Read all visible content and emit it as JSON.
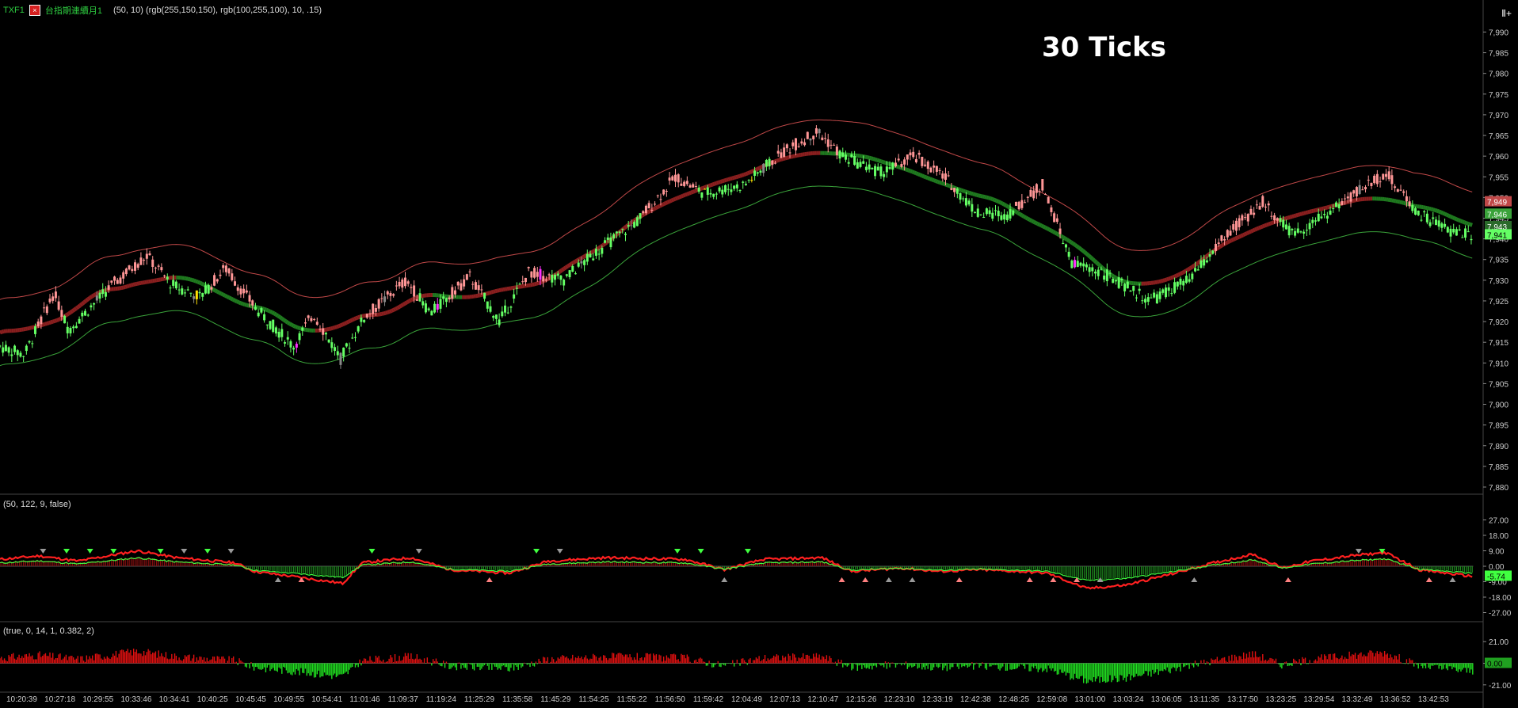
{
  "header": {
    "symbol": "TXF1",
    "close_glyph": "×",
    "indicator": "台指期連續月1",
    "params": "(50,  10)  (rgb(255,150,150),  rgb(100,255,100),  10,  .15)"
  },
  "corner_label": "Ⅱ+",
  "title": "30 Ticks",
  "panel2_header": "(50,  122,  9,  false)",
  "panel3_header": "(true,  0,  14,  1,  0.382,  2)",
  "colors": {
    "background": "#000000",
    "up": "#ff9696",
    "down": "#64ff64",
    "yellow": "#ffe000",
    "magenta": "#ff30ff",
    "band_upper": "#c04848",
    "band_lower": "#3aa33a",
    "mid_red": "#8a1f1f",
    "mid_green": "#1f7a1f",
    "grid_sep": "#444444",
    "axis_text": "#cccccc"
  },
  "chart_data": [
    {
      "type": "candlestick",
      "name": "price",
      "ylim": [
        7880,
        7992
      ],
      "yticks": [
        "7,990",
        "7,985",
        "7,980",
        "7,975",
        "7,970",
        "7,965",
        "7,960",
        "7,955",
        "7,950",
        "7,945",
        "7,940",
        "7,935",
        "7,930",
        "7,925",
        "7,920",
        "7,915",
        "7,910",
        "7,905",
        "7,900",
        "7,895",
        "7,890",
        "7,885",
        "7,880"
      ],
      "path_anchors": [
        [
          0,
          7914
        ],
        [
          25,
          7912
        ],
        [
          55,
          7927
        ],
        [
          70,
          7918
        ],
        [
          115,
          7929
        ],
        [
          150,
          7936
        ],
        [
          175,
          7929
        ],
        [
          205,
          7926
        ],
        [
          230,
          7933
        ],
        [
          262,
          7923
        ],
        [
          300,
          7914
        ],
        [
          320,
          7922
        ],
        [
          348,
          7911
        ],
        [
          372,
          7921
        ],
        [
          415,
          7930
        ],
        [
          440,
          7922
        ],
        [
          480,
          7931
        ],
        [
          510,
          7920
        ],
        [
          540,
          7932
        ],
        [
          575,
          7930
        ],
        [
          610,
          7937
        ],
        [
          650,
          7944
        ],
        [
          690,
          7955
        ],
        [
          720,
          7951
        ],
        [
          760,
          7953
        ],
        [
          800,
          7961
        ],
        [
          835,
          7966
        ],
        [
          860,
          7960
        ],
        [
          900,
          7956
        ],
        [
          935,
          7960
        ],
        [
          965,
          7955
        ],
        [
          1000,
          7946
        ],
        [
          1030,
          7946
        ],
        [
          1065,
          7953
        ],
        [
          1095,
          7934
        ],
        [
          1125,
          7932
        ],
        [
          1175,
          7925
        ],
        [
          1215,
          7930
        ],
        [
          1250,
          7940
        ],
        [
          1290,
          7949
        ],
        [
          1320,
          7941
        ],
        [
          1355,
          7946
        ],
        [
          1390,
          7952
        ],
        [
          1415,
          7956
        ],
        [
          1450,
          7946
        ],
        [
          1480,
          7942
        ],
        [
          1505,
          7941
        ]
      ],
      "last_price_labels": [
        {
          "text": "7,949",
          "color": "#c04848"
        },
        {
          "text": "7,946",
          "color": "#3aa33a"
        },
        {
          "text": "7,943",
          "color": "#2a6a2a"
        },
        {
          "text": "7,941",
          "color": "#64ff64"
        }
      ]
    },
    {
      "type": "line",
      "name": "oscillator",
      "ylim": [
        -30,
        30
      ],
      "yticks": [
        "27.00",
        "18.00",
        "9.00",
        "0.00",
        "-9.00",
        "-18.00",
        "-27.00"
      ],
      "last_value_label": "-5.74",
      "path_anchors": [
        [
          0,
          4
        ],
        [
          40,
          6
        ],
        [
          80,
          3
        ],
        [
          140,
          9
        ],
        [
          180,
          5
        ],
        [
          240,
          2
        ],
        [
          260,
          -3
        ],
        [
          300,
          -6
        ],
        [
          350,
          -10
        ],
        [
          370,
          2
        ],
        [
          420,
          5
        ],
        [
          460,
          -2
        ],
        [
          520,
          -4
        ],
        [
          560,
          3
        ],
        [
          620,
          5
        ],
        [
          700,
          4
        ],
        [
          740,
          -2
        ],
        [
          780,
          4
        ],
        [
          840,
          5
        ],
        [
          870,
          -3
        ],
        [
          920,
          -1
        ],
        [
          960,
          -3
        ],
        [
          1000,
          -2
        ],
        [
          1040,
          -3
        ],
        [
          1070,
          -4
        ],
        [
          1110,
          -13
        ],
        [
          1150,
          -11
        ],
        [
          1200,
          -4
        ],
        [
          1240,
          2
        ],
        [
          1280,
          7
        ],
        [
          1310,
          -1
        ],
        [
          1340,
          3
        ],
        [
          1380,
          6
        ],
        [
          1415,
          8
        ],
        [
          1450,
          -2
        ],
        [
          1505,
          -6
        ]
      ]
    },
    {
      "type": "histogram",
      "name": "momentum",
      "ylim": [
        -25,
        25
      ],
      "yticks": [
        "21.00",
        "0.00",
        "-21.00"
      ],
      "last_value_label": "0.00"
    }
  ],
  "time_axis": [
    "10:20:39",
    "10:27:18",
    "10:29:55",
    "10:33:46",
    "10:34:41",
    "10:40:25",
    "10:45:45",
    "10:49:55",
    "10:54:41",
    "11:01:46",
    "11:09:37",
    "11:19:24",
    "11:25:29",
    "11:35:58",
    "11:45:29",
    "11:54:25",
    "11:55:22",
    "11:56:50",
    "11:59:42",
    "12:04:49",
    "12:07:13",
    "12:10:47",
    "12:15:26",
    "12:23:10",
    "12:33:19",
    "12:42:38",
    "12:48:25",
    "12:59:08",
    "13:01:00",
    "13:03:24",
    "13:06:05",
    "13:11:35",
    "13:17:50",
    "13:23:25",
    "13:29:54",
    "13:32:49",
    "13:36:52",
    "13:42:53"
  ]
}
